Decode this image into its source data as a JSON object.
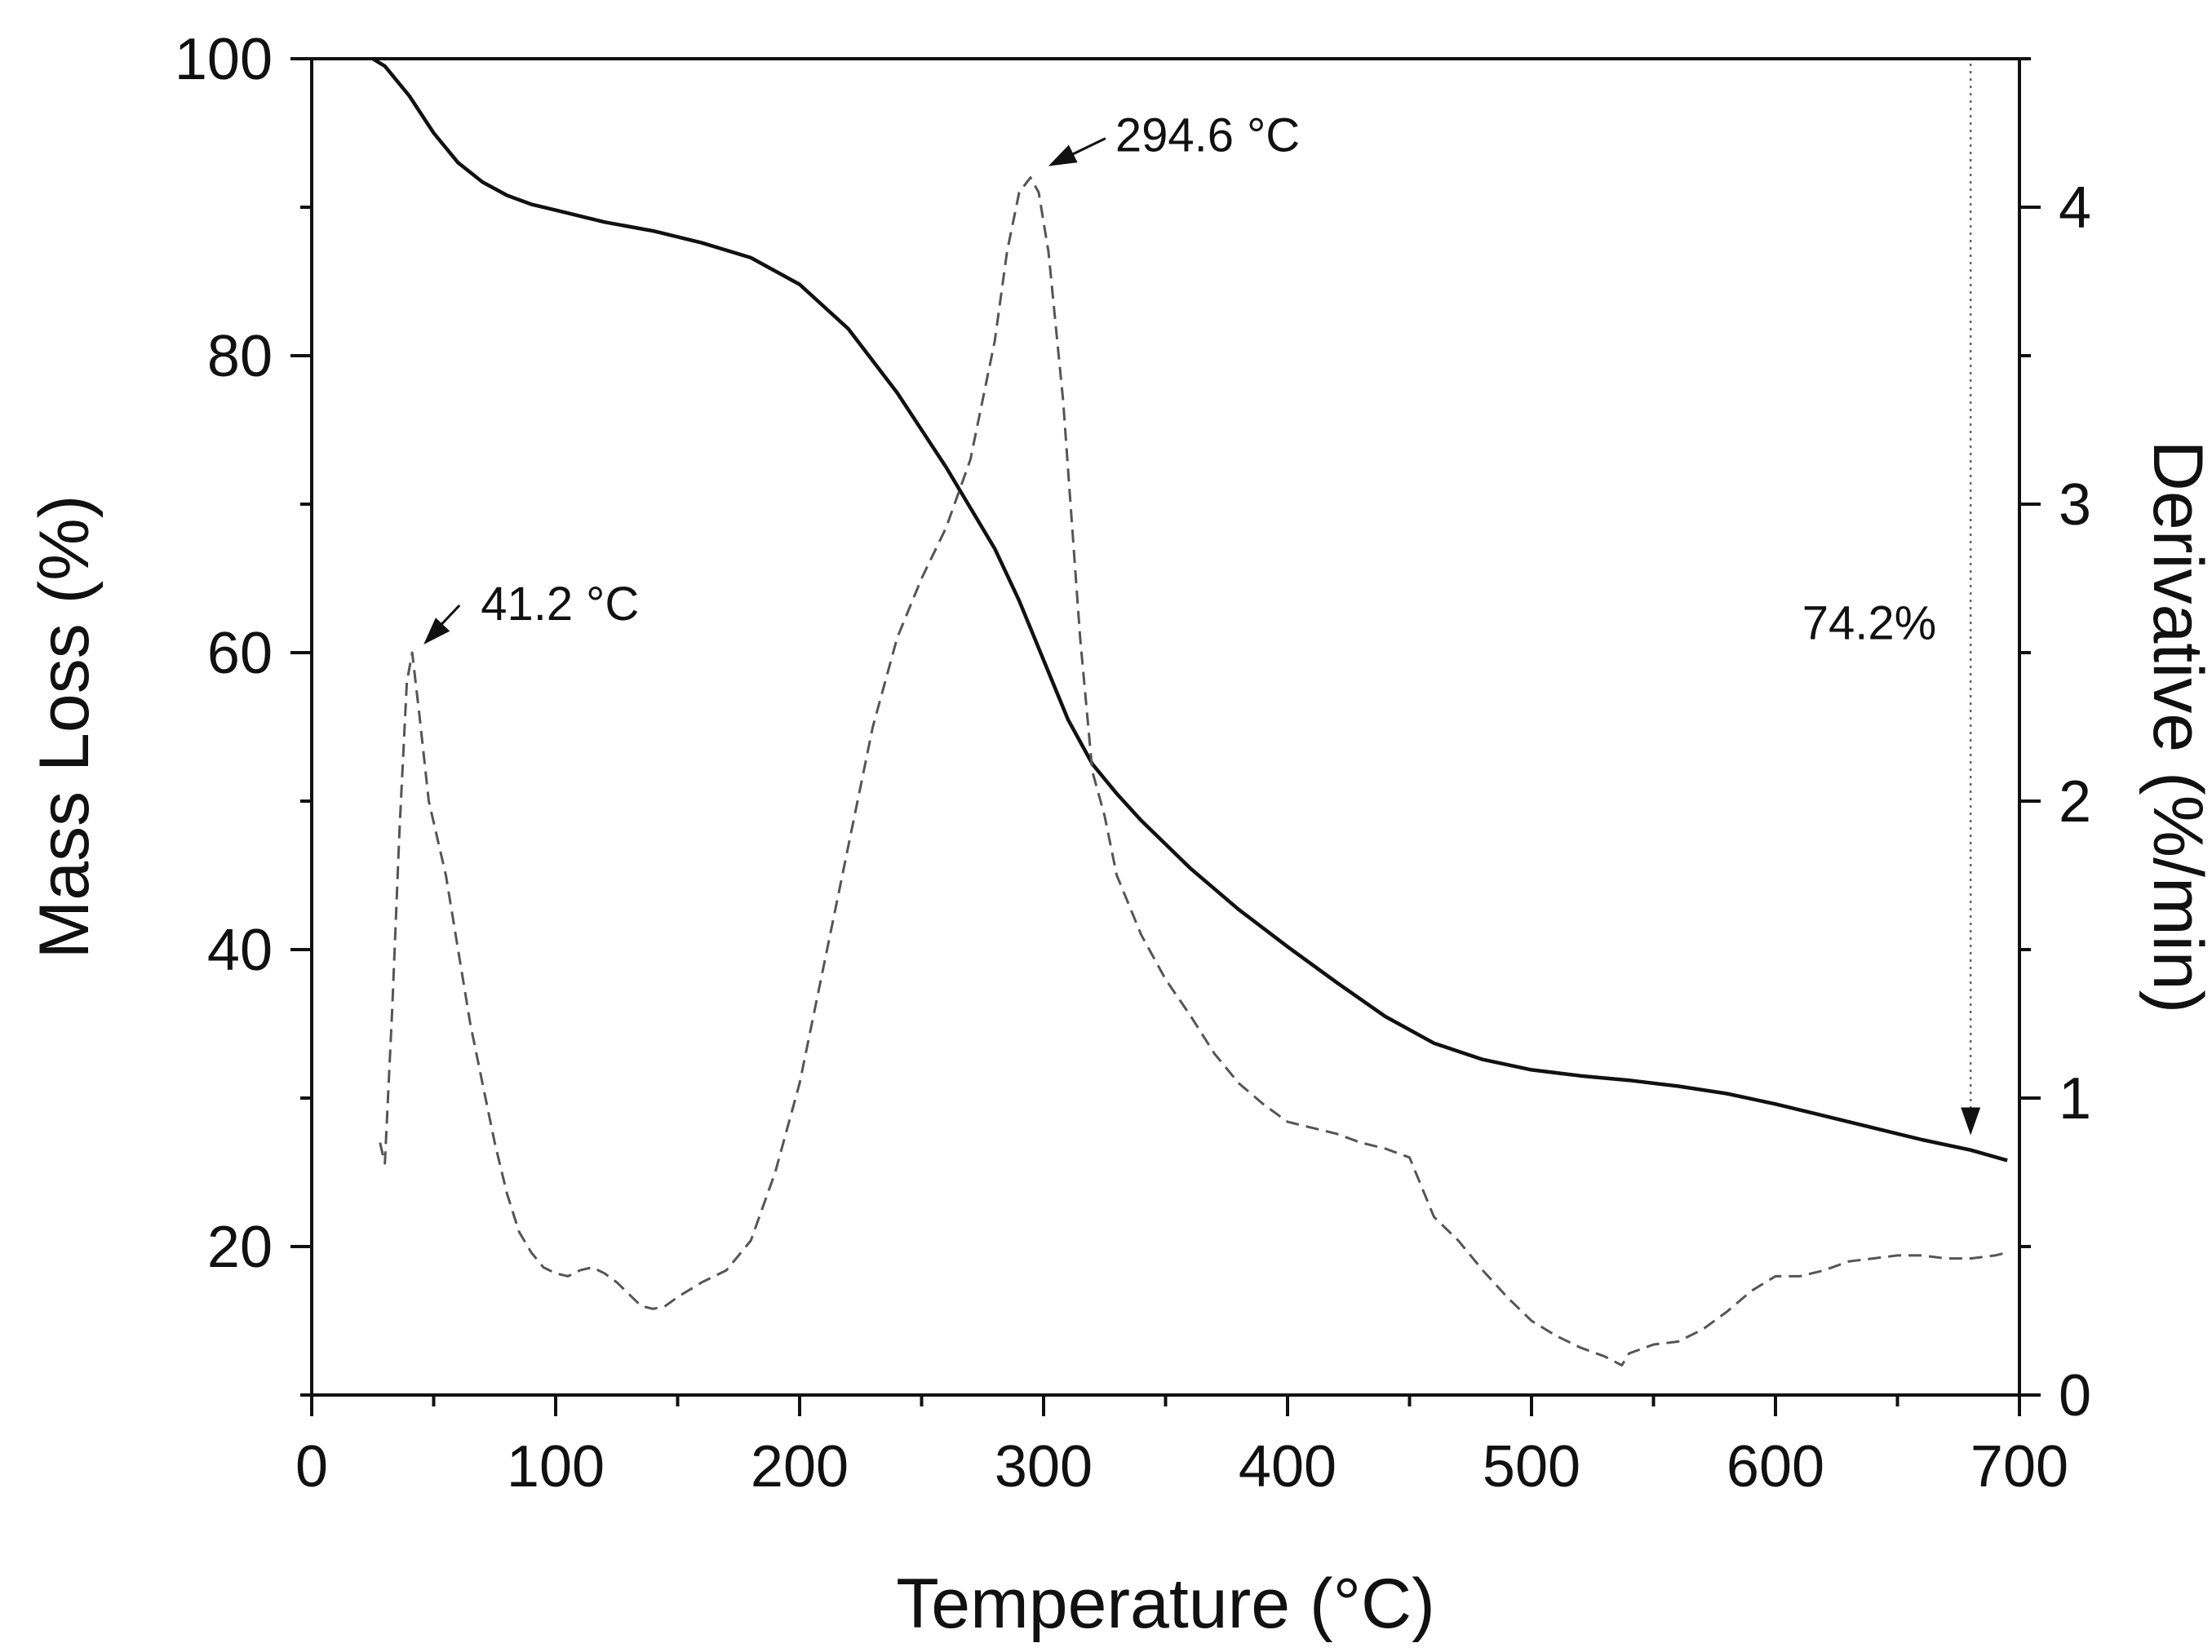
{
  "chart_data": {
    "type": "line",
    "xlabel": "Temperature (°C)",
    "ylabel": "Mass Loss (%)",
    "y2label": "Derivative (%/min)",
    "xlim": [
      0,
      700
    ],
    "ylim": [
      10,
      100
    ],
    "y2lim": [
      0,
      4.5
    ],
    "x_ticks": [
      0,
      100,
      200,
      300,
      400,
      500,
      600,
      700
    ],
    "y_ticks": [
      20,
      40,
      60,
      80,
      100
    ],
    "y2_ticks": [
      0,
      1,
      2,
      3,
      4
    ],
    "grid": false,
    "series": [
      {
        "axis": "left",
        "style": "solid",
        "color": "#111111",
        "x": [
          25,
          30,
          40,
          50,
          60,
          70,
          80,
          90,
          100,
          120,
          140,
          160,
          180,
          200,
          220,
          240,
          260,
          280,
          290,
          300,
          310,
          320,
          330,
          340,
          360,
          380,
          400,
          420,
          440,
          460,
          480,
          500,
          520,
          540,
          560,
          580,
          600,
          620,
          640,
          660,
          680,
          695
        ],
        "y": [
          100,
          99.5,
          97.5,
          95,
          93,
          91.7,
          90.8,
          90.2,
          89.8,
          89,
          88.4,
          87.6,
          86.6,
          84.8,
          81.8,
          77.5,
          72.5,
          67,
          63.5,
          59.5,
          55.5,
          52.5,
          50.5,
          48.7,
          45.5,
          42.7,
          40.2,
          37.8,
          35.5,
          33.7,
          32.6,
          31.9,
          31.5,
          31.2,
          30.8,
          30.3,
          29.6,
          28.8,
          28,
          27.2,
          26.5,
          25.8
        ]
      },
      {
        "axis": "right",
        "style": "dashed",
        "color": "#555555",
        "x": [
          28,
          30,
          33,
          36,
          39,
          41.2,
          44,
          48,
          55,
          60,
          65,
          70,
          75,
          80,
          85,
          90,
          95,
          100,
          105,
          110,
          115,
          120,
          125,
          130,
          135,
          140,
          145,
          150,
          160,
          170,
          180,
          190,
          200,
          210,
          220,
          230,
          240,
          250,
          260,
          270,
          280,
          285,
          290,
          294.6,
          298,
          302,
          308,
          315,
          320,
          325,
          330,
          335,
          340,
          350,
          360,
          370,
          380,
          390,
          400,
          410,
          420,
          430,
          440,
          450,
          455,
          460,
          470,
          480,
          490,
          500,
          510,
          520,
          530,
          537,
          540,
          550,
          560,
          570,
          580,
          590,
          600,
          610,
          620,
          630,
          640,
          650,
          660,
          670,
          680,
          690,
          695
        ],
        "y": [
          0.85,
          0.78,
          1.3,
          1.9,
          2.4,
          2.5,
          2.3,
          2.0,
          1.75,
          1.5,
          1.25,
          1.05,
          0.85,
          0.68,
          0.55,
          0.48,
          0.43,
          0.41,
          0.4,
          0.42,
          0.43,
          0.41,
          0.38,
          0.34,
          0.3,
          0.29,
          0.3,
          0.33,
          0.38,
          0.42,
          0.52,
          0.75,
          1.05,
          1.45,
          1.85,
          2.25,
          2.55,
          2.75,
          2.92,
          3.15,
          3.55,
          3.85,
          4.05,
          4.1,
          4.05,
          3.85,
          3.35,
          2.55,
          2.1,
          1.95,
          1.75,
          1.65,
          1.55,
          1.4,
          1.28,
          1.15,
          1.05,
          0.98,
          0.92,
          0.9,
          0.88,
          0.85,
          0.83,
          0.8,
          0.7,
          0.6,
          0.52,
          0.42,
          0.33,
          0.25,
          0.2,
          0.16,
          0.13,
          0.1,
          0.14,
          0.17,
          0.18,
          0.22,
          0.28,
          0.35,
          0.4,
          0.4,
          0.42,
          0.45,
          0.46,
          0.47,
          0.47,
          0.46,
          0.46,
          0.47,
          0.48
        ]
      }
    ],
    "annotations": [
      {
        "text": "41.2 °C",
        "x": 41.2,
        "y": 2.5,
        "axis": "right"
      },
      {
        "text": "294.6 °C",
        "x": 294.6,
        "y": 4.1,
        "axis": "right"
      },
      {
        "text": "74.2%",
        "x": 680,
        "y": 62,
        "axis": "left"
      }
    ]
  }
}
